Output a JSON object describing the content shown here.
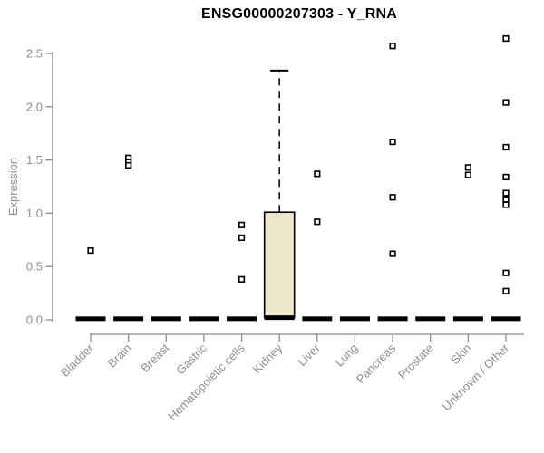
{
  "chart_data": {
    "type": "boxplot",
    "title": "ENSG00000207303 - Y_RNA",
    "ylabel": "Expression",
    "xlabel": "",
    "ylim": [
      0,
      2.5
    ],
    "yticks": [
      0.0,
      0.5,
      1.0,
      1.5,
      2.0,
      2.5
    ],
    "grid": false,
    "legend": false,
    "colors": {
      "title": "#000000",
      "axis": "#8a8a8a",
      "tick_label": "#8f8f8f",
      "box_fill": "#ece6cb",
      "box_stroke": "#000000",
      "outlier_fill": "#ffffff",
      "outlier_stroke": "#000000"
    },
    "categories": [
      "Bladder",
      "Brain",
      "Breast",
      "Gastric",
      "Hematopoietic cells",
      "Kidney",
      "Liver",
      "Lung",
      "Pancreas",
      "Prostate",
      "Skin",
      "Unknown / Other"
    ],
    "series": [
      {
        "name": "Bladder",
        "q1": 0.0,
        "median": 0.01,
        "q3": 0.02,
        "whisker_low": null,
        "whisker_high": null,
        "outliers": [
          0.65
        ]
      },
      {
        "name": "Brain",
        "q1": 0.0,
        "median": 0.01,
        "q3": 0.02,
        "whisker_low": null,
        "whisker_high": null,
        "outliers": [
          1.52,
          1.48,
          1.45
        ]
      },
      {
        "name": "Breast",
        "q1": 0.0,
        "median": 0.01,
        "q3": 0.02,
        "whisker_low": null,
        "whisker_high": null,
        "outliers": []
      },
      {
        "name": "Gastric",
        "q1": 0.0,
        "median": 0.01,
        "q3": 0.02,
        "whisker_low": null,
        "whisker_high": null,
        "outliers": []
      },
      {
        "name": "Hematopoietic cells",
        "q1": 0.0,
        "median": 0.01,
        "q3": 0.02,
        "whisker_low": null,
        "whisker_high": null,
        "outliers": [
          0.89,
          0.77,
          0.38
        ]
      },
      {
        "name": "Kidney",
        "q1": 0.02,
        "median": 0.02,
        "q3": 1.01,
        "whisker_low": null,
        "whisker_high": 2.34,
        "outliers": []
      },
      {
        "name": "Liver",
        "q1": 0.0,
        "median": 0.01,
        "q3": 0.02,
        "whisker_low": null,
        "whisker_high": null,
        "outliers": [
          1.37,
          0.92
        ]
      },
      {
        "name": "Lung",
        "q1": 0.0,
        "median": 0.01,
        "q3": 0.02,
        "whisker_low": null,
        "whisker_high": null,
        "outliers": []
      },
      {
        "name": "Pancreas",
        "q1": 0.0,
        "median": 0.01,
        "q3": 0.02,
        "whisker_low": null,
        "whisker_high": null,
        "outliers": [
          2.57,
          1.67,
          1.15,
          0.62
        ]
      },
      {
        "name": "Prostate",
        "q1": 0.0,
        "median": 0.01,
        "q3": 0.02,
        "whisker_low": null,
        "whisker_high": null,
        "outliers": []
      },
      {
        "name": "Skin",
        "q1": 0.0,
        "median": 0.01,
        "q3": 0.02,
        "whisker_low": null,
        "whisker_high": null,
        "outliers": [
          1.43,
          1.36
        ]
      },
      {
        "name": "Unknown / Other",
        "q1": 0.0,
        "median": 0.01,
        "q3": 0.02,
        "whisker_low": null,
        "whisker_high": null,
        "outliers": [
          2.64,
          2.04,
          1.62,
          1.34,
          1.19,
          1.13,
          1.08,
          0.44,
          0.27
        ]
      }
    ]
  }
}
